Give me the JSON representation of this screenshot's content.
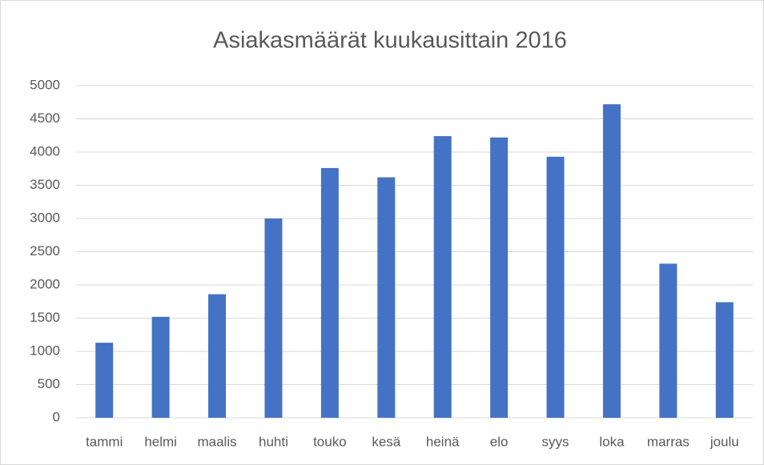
{
  "chart_data": {
    "type": "bar",
    "title": "Asiakasmäärät kuukausittain 2016",
    "categories": [
      "tammi",
      "helmi",
      "maalis",
      "huhti",
      "touko",
      "kesä",
      "heinä",
      "elo",
      "syys",
      "loka",
      "marras",
      "joulu"
    ],
    "values": [
      1130,
      1520,
      1860,
      3000,
      3760,
      3620,
      4240,
      4220,
      3930,
      4720,
      2320,
      1740
    ],
    "color": "#4472c4",
    "ylim": [
      0,
      5000
    ],
    "yticks": [
      0,
      500,
      1000,
      1500,
      2000,
      2500,
      3000,
      3500,
      4000,
      4500,
      5000
    ],
    "grid": true
  }
}
